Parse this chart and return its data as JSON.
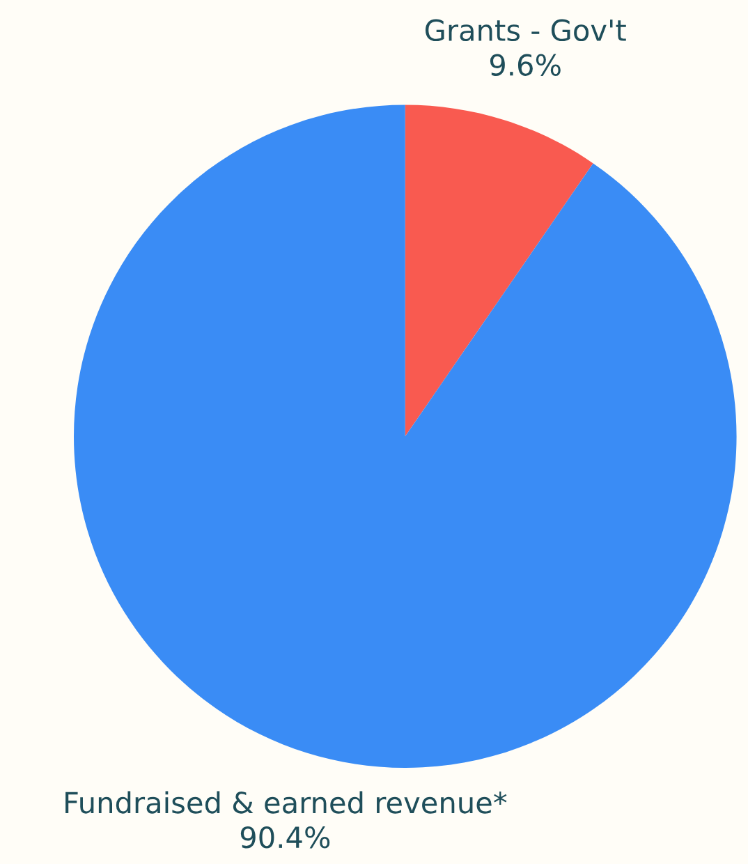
{
  "chart_data": {
    "type": "pie",
    "categories": [
      "Grants - Gov't",
      "Fundraised & earned revenue*"
    ],
    "values": [
      9.6,
      90.4
    ],
    "value_labels": [
      "9.6%",
      "90.4%"
    ],
    "colors": [
      "#f95a50",
      "#3a8cf5"
    ]
  }
}
